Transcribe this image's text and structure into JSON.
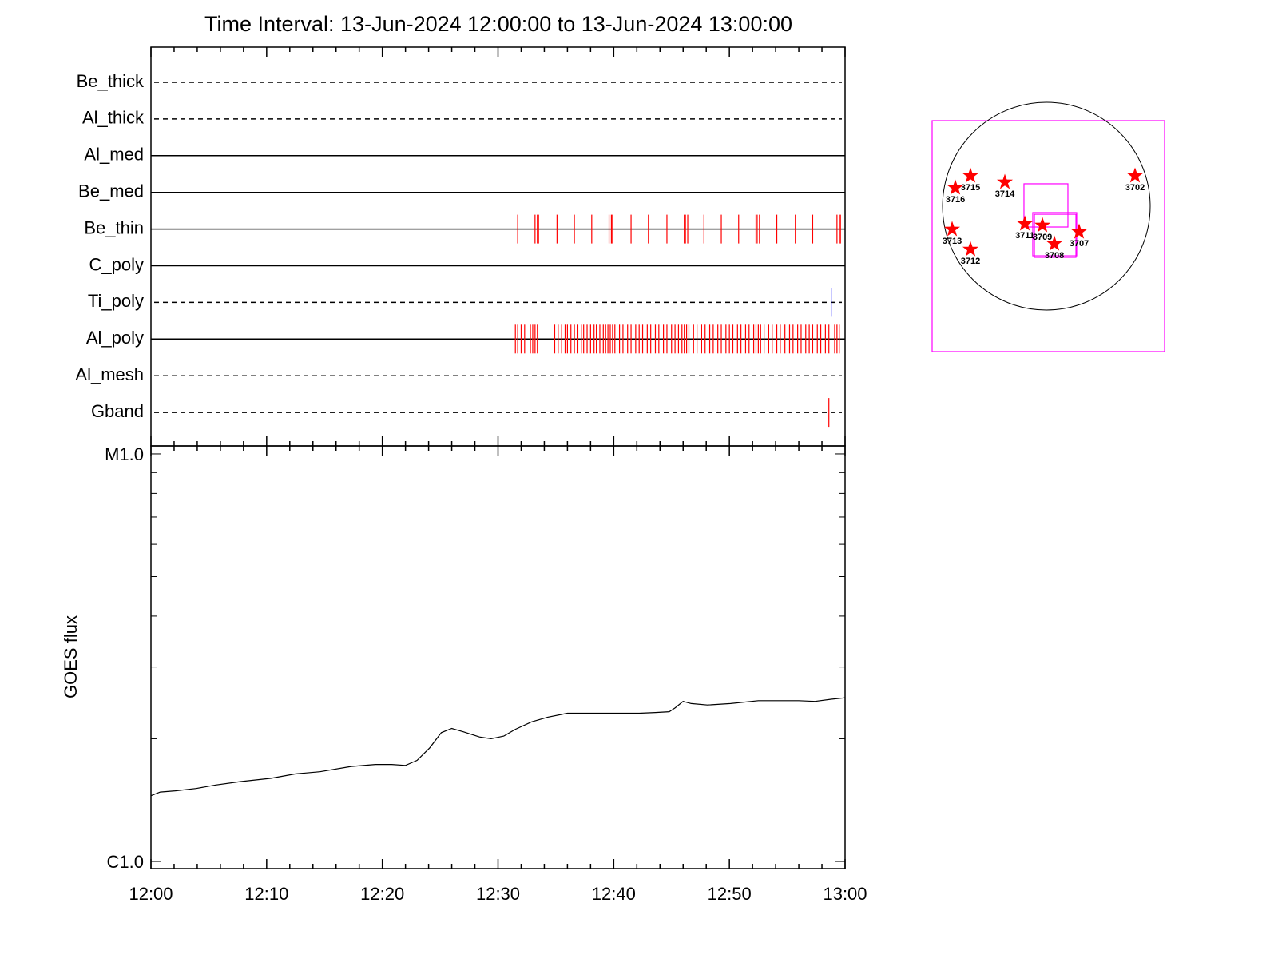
{
  "chart_data": [
    {
      "type": "timeline",
      "title": "Time Interval: 13-Jun-2024 12:00:00 to 13-Jun-2024 13:00:00",
      "xlim": [
        0,
        60
      ],
      "series": [
        {
          "name": "Be_thick",
          "line": "dashed",
          "color": "#ff0000",
          "values": []
        },
        {
          "name": "Al_thick",
          "line": "dashed",
          "color": "#ff0000",
          "values": []
        },
        {
          "name": "Al_med",
          "line": "solid",
          "color": "#ff0000",
          "values": []
        },
        {
          "name": "Be_med",
          "line": "solid",
          "color": "#ff0000",
          "values": []
        },
        {
          "name": "Be_thin",
          "line": "solid",
          "color": "#ff0000",
          "values": [
            31.7,
            33.2,
            33.4,
            33.5,
            35.1,
            36.6,
            38.1,
            39.6,
            39.8,
            39.9,
            41.5,
            43.0,
            44.6,
            46.1,
            46.2,
            46.4,
            47.8,
            49.3,
            50.8,
            52.3,
            52.4,
            52.6,
            54.1,
            55.7,
            57.2,
            59.3,
            59.5,
            59.6
          ]
        },
        {
          "name": "C_poly",
          "line": "solid",
          "color": "#ff0000",
          "values": []
        },
        {
          "name": "Ti_poly",
          "line": "dashed",
          "color": "#0000ff",
          "values": [
            58.8
          ]
        },
        {
          "name": "Al_poly",
          "line": "solid",
          "color": "#ff0000",
          "values": [
            31.5,
            31.7,
            32.0,
            32.3,
            32.8,
            33.0,
            33.2,
            33.4,
            34.9,
            35.2,
            35.5,
            35.8,
            36.0,
            36.3,
            36.6,
            36.9,
            37.2,
            37.4,
            37.7,
            38.0,
            38.3,
            38.5,
            38.8,
            39.1,
            39.3,
            39.5,
            39.7,
            39.9,
            40.1,
            40.5,
            40.8,
            41.2,
            41.5,
            41.9,
            42.2,
            42.5,
            42.9,
            43.2,
            43.6,
            43.9,
            44.3,
            44.6,
            45.0,
            45.3,
            45.6,
            45.9,
            46.1,
            46.3,
            46.5,
            46.9,
            47.2,
            47.6,
            47.9,
            48.3,
            48.6,
            49.0,
            49.3,
            49.7,
            50.0,
            50.3,
            50.7,
            51.0,
            51.4,
            51.7,
            52.1,
            52.3,
            52.5,
            52.7,
            53.0,
            53.4,
            53.7,
            54.1,
            54.4,
            54.8,
            55.2,
            55.5,
            55.9,
            56.2,
            56.6,
            56.9,
            57.2,
            57.6,
            57.9,
            58.3,
            58.6,
            59.1,
            59.3,
            59.5
          ]
        },
        {
          "name": "Al_mesh",
          "line": "dashed",
          "color": "#ff0000",
          "values": []
        },
        {
          "name": "Gband",
          "line": "dashed",
          "color": "#ff0000",
          "values": [
            58.6
          ]
        }
      ]
    },
    {
      "type": "line",
      "ylabel": "GOES flux",
      "log_scale": true,
      "color": "#000000",
      "x": [
        0,
        0.8,
        2.1,
        3.9,
        5.6,
        7.7,
        10.4,
        12.5,
        14.6,
        17.3,
        19.4,
        20.8,
        22.0,
        23.0,
        24.1,
        25.1,
        26.0,
        27.0,
        28.4,
        29.4,
        30.5,
        31.5,
        32.9,
        34.3,
        36.0,
        38.1,
        40.1,
        42.2,
        43.6,
        44.8,
        45.3,
        46.0,
        46.7,
        48.1,
        50.1,
        52.5,
        54.6,
        56.0,
        57.4,
        58.8,
        60.0
      ],
      "values": [
        1.45e-06,
        1.48e-06,
        1.49e-06,
        1.51e-06,
        1.54e-06,
        1.57e-06,
        1.6e-06,
        1.64e-06,
        1.66e-06,
        1.71e-06,
        1.73e-06,
        1.73e-06,
        1.72e-06,
        1.77e-06,
        1.9e-06,
        2.07e-06,
        2.12e-06,
        2.08e-06,
        2.02e-06,
        2e-06,
        2.03e-06,
        2.11e-06,
        2.2e-06,
        2.26e-06,
        2.31e-06,
        2.31e-06,
        2.31e-06,
        2.31e-06,
        2.32e-06,
        2.33e-06,
        2.38e-06,
        2.47e-06,
        2.44e-06,
        2.42e-06,
        2.44e-06,
        2.48e-06,
        2.48e-06,
        2.48e-06,
        2.47e-06,
        2.5e-06,
        2.52e-06
      ],
      "xlim": [
        0,
        60
      ],
      "xticks": [
        {
          "value": 0,
          "label": "12:00"
        },
        {
          "value": 10,
          "label": "12:10"
        },
        {
          "value": 20,
          "label": "12:20"
        },
        {
          "value": 30,
          "label": "12:30"
        },
        {
          "value": 40,
          "label": "12:40"
        },
        {
          "value": 50,
          "label": "12:50"
        },
        {
          "value": 60,
          "label": "13:00"
        }
      ],
      "xminorticks": [
        2,
        4,
        6,
        8,
        12,
        14,
        16,
        18,
        22,
        24,
        26,
        28,
        32,
        34,
        36,
        38,
        42,
        44,
        46,
        48,
        52,
        54,
        56,
        58
      ],
      "ylim": [
        9.6e-07,
        1.046e-05
      ],
      "yticks": [
        {
          "value": 1e-06,
          "label": "C1.0"
        },
        {
          "value": 1e-05,
          "label": "M1.0"
        }
      ],
      "yminorticks": [
        2e-06,
        3e-06,
        4e-06,
        5e-06,
        6e-06,
        7e-06,
        8e-06,
        9e-06
      ]
    },
    {
      "type": "disk",
      "disk_radius": 945,
      "xlim": [
        -1040,
        1076
      ],
      "ylim": [
        -1323,
        778
      ],
      "box_color": "#ff00ff",
      "star_color": "#ff0000",
      "boxes": [
        {
          "x": [
            -204,
            196
          ],
          "y": [
            -189,
            204
          ]
        },
        {
          "x": [
            -124,
            276
          ],
          "y": [
            -451,
            -58
          ]
        },
        {
          "x": [
            -109,
            269
          ],
          "y": [
            -465,
            -73
          ]
        }
      ],
      "points": [
        {
          "label": "3715",
          "x": -691,
          "y": 276
        },
        {
          "label": "3716",
          "x": -829,
          "y": 167
        },
        {
          "label": "3714",
          "x": -378,
          "y": 218
        },
        {
          "label": "3702",
          "x": 807,
          "y": 276
        },
        {
          "label": "3713",
          "x": -858,
          "y": -211
        },
        {
          "label": "3712",
          "x": -691,
          "y": -393
        },
        {
          "label": "3711",
          "x": -196,
          "y": -160
        },
        {
          "label": "3709",
          "x": -36,
          "y": -174
        },
        {
          "label": "3708",
          "x": 73,
          "y": -342
        },
        {
          "label": "3707",
          "x": 298,
          "y": -233
        }
      ]
    }
  ]
}
